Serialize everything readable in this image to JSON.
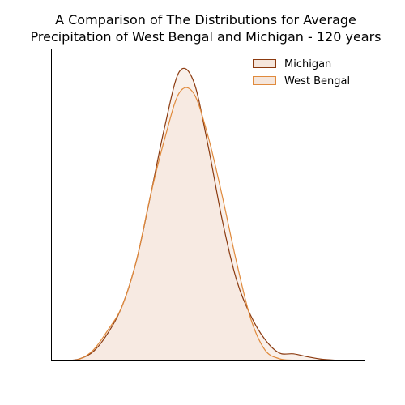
{
  "chart_data": {
    "type": "area",
    "title": "A Comparison of The Distributions for Average\nPrecipitation of West Bengal and Michigan - 120 years",
    "xlabel": "",
    "ylabel": "",
    "x_ticks_shown": false,
    "y_ticks_shown": false,
    "grid": false,
    "legend_position": "top-right",
    "x": [
      0.0,
      0.05,
      0.1,
      0.15,
      0.2,
      0.25,
      0.3,
      0.35,
      0.4,
      0.45,
      0.5,
      0.55,
      0.6,
      0.65,
      0.7,
      0.75,
      0.8,
      0.85,
      0.9,
      0.95,
      1.0
    ],
    "ylim": [
      0,
      1.0
    ],
    "series": [
      {
        "name": "Michigan",
        "line_color": "#8B3A0F",
        "fill_color": "#F5E6DC",
        "values": [
          0.0,
          0.005,
          0.03,
          0.09,
          0.18,
          0.33,
          0.55,
          0.78,
          0.96,
          0.93,
          0.72,
          0.47,
          0.27,
          0.15,
          0.07,
          0.025,
          0.022,
          0.012,
          0.004,
          0.001,
          0.0
        ]
      },
      {
        "name": "West Bengal",
        "line_color": "#E08A3C",
        "fill_color": "#F5E6DC",
        "values": [
          0.0,
          0.004,
          0.035,
          0.1,
          0.18,
          0.33,
          0.55,
          0.74,
          0.89,
          0.89,
          0.75,
          0.55,
          0.33,
          0.14,
          0.035,
          0.006,
          0.001,
          0.0,
          0.0,
          0.0,
          0.0
        ]
      }
    ]
  }
}
